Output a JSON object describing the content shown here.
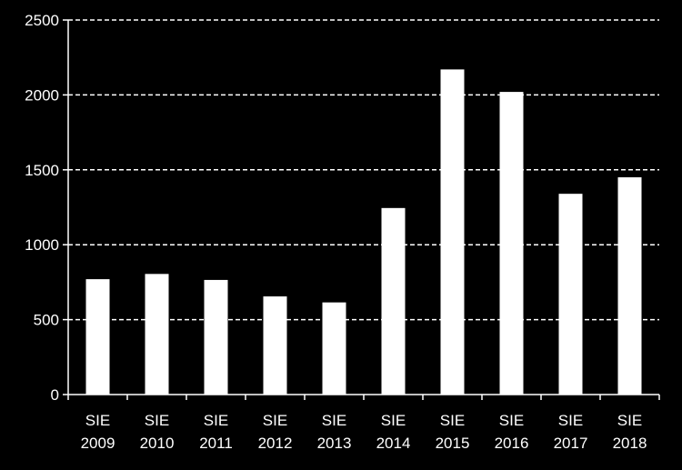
{
  "chart_data": {
    "type": "bar",
    "title": "",
    "xlabel": "",
    "ylabel": "",
    "categories": [
      [
        "SIE",
        "2009"
      ],
      [
        "SIE",
        "2010"
      ],
      [
        "SIE",
        "2011"
      ],
      [
        "SIE",
        "2012"
      ],
      [
        "SIE",
        "2013"
      ],
      [
        "SIE",
        "2014"
      ],
      [
        "SIE",
        "2015"
      ],
      [
        "SIE",
        "2016"
      ],
      [
        "SIE",
        "2017"
      ],
      [
        "SIE",
        "2018"
      ]
    ],
    "values": [
      770,
      805,
      765,
      655,
      615,
      1245,
      2170,
      2020,
      1340,
      1450
    ],
    "ylim": [
      0,
      2500
    ],
    "yticks": [
      0,
      500,
      1000,
      1500,
      2000,
      2500
    ],
    "ytick_labels": [
      "0",
      "500",
      "1000",
      "1500",
      "2000",
      "2500"
    ],
    "grid": "dashed horizontal",
    "legend": "none",
    "colors": {
      "background": "#000000",
      "bar": "#ffffff",
      "axis": "#ffffff",
      "grid": "#ffffff",
      "text": "#ffffff"
    }
  }
}
